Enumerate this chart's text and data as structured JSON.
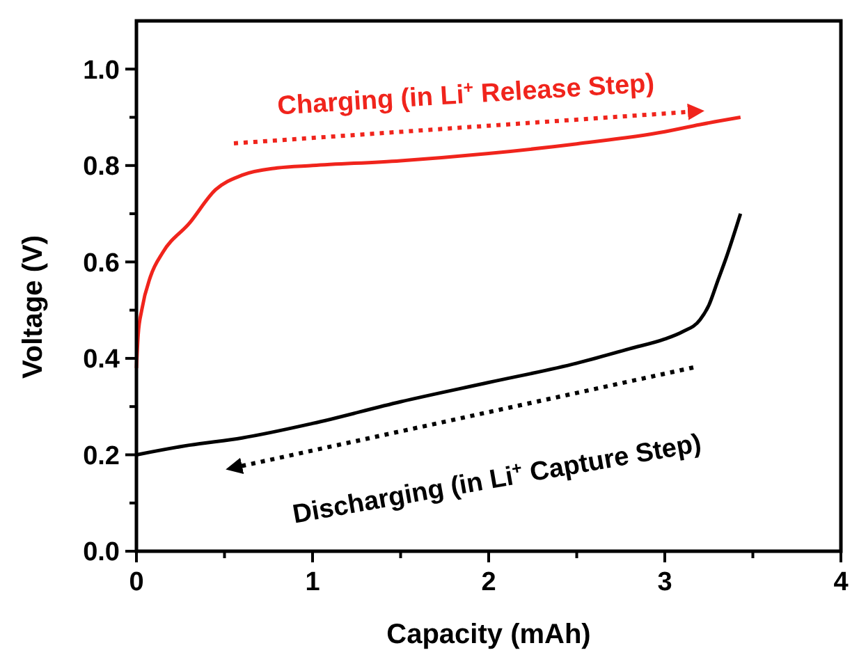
{
  "chart_data": {
    "type": "line",
    "xlabel": "Capacity (mAh)",
    "ylabel": "Voltage (V)",
    "xlim": [
      0,
      4
    ],
    "ylim": [
      0,
      1.1
    ],
    "xticks": [
      0,
      {
        "value": 0.5,
        "label": null
      },
      1,
      {
        "value": 1.5,
        "label": null
      },
      2,
      {
        "value": 2.5,
        "label": null
      },
      3,
      {
        "value": 3.5,
        "label": null
      },
      4
    ],
    "yticks": [
      {
        "value": 0,
        "label": "0.0"
      },
      {
        "value": 0.1,
        "label": null
      },
      0.2,
      {
        "value": 0.3,
        "label": null
      },
      0.4,
      {
        "value": 0.5,
        "label": null
      },
      0.6,
      {
        "value": 0.7,
        "label": null
      },
      0.8,
      {
        "value": 0.9,
        "label": null
      },
      {
        "value": 1,
        "label": "1.0"
      }
    ],
    "grid": false,
    "marker": "none",
    "line_style": "solid",
    "series": [
      {
        "color": "#f0241c",
        "x": [
          0,
          0.01,
          0.03,
          0.08,
          0.15,
          0.3,
          0.45,
          0.6,
          0.8,
          1,
          1.5,
          2,
          2.5,
          3,
          3.2,
          3.43
        ],
        "values": [
          0.38,
          0.45,
          0.5,
          0.57,
          0.62,
          0.68,
          0.75,
          0.78,
          0.795,
          0.8,
          0.81,
          0.825,
          0.845,
          0.87,
          0.885,
          0.9
        ]
      },
      {
        "color": "#000000",
        "x": [
          0,
          0.3,
          0.6,
          1,
          1.5,
          2,
          2.5,
          2.8,
          3,
          3.1,
          3.2,
          3.25,
          3.3,
          3.35,
          3.43
        ],
        "values": [
          0.2,
          0.22,
          0.235,
          0.265,
          0.31,
          0.35,
          0.39,
          0.42,
          0.44,
          0.455,
          0.48,
          0.51,
          0.56,
          0.61,
          0.7
        ]
      }
    ],
    "annotations": [
      "Charging (in Li$^{+}$ Release Step)",
      "Discharging (in Li$^{+}$ Capture Step)"
    ]
  }
}
